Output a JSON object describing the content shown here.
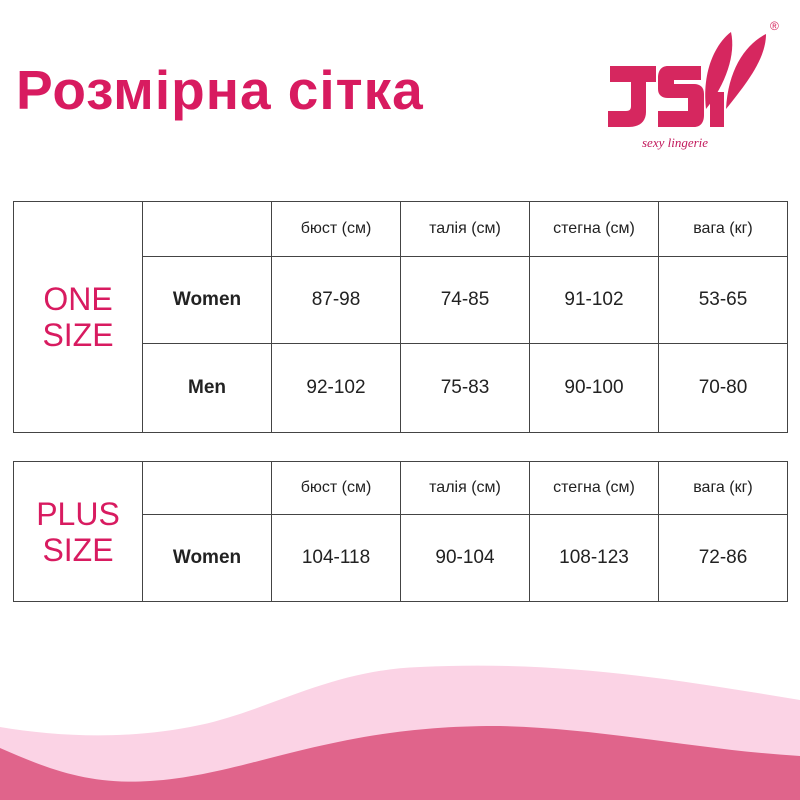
{
  "title": "Розмірна сітка",
  "logo": {
    "text": "JSY",
    "tagline": "sexy lingerie",
    "registered": "®"
  },
  "colors": {
    "accent": "#d81b60",
    "wave_light": "#fbd3e5",
    "wave_dark": "#e0648b"
  },
  "columns": [
    "бюст (см)",
    "талія (см)",
    "стегна (см)",
    "вага (кг)"
  ],
  "one_size": {
    "label_line1": "ONE",
    "label_line2": "SIZE",
    "rows": [
      {
        "label": "Women",
        "values": [
          "87-98",
          "74-85",
          "91-102",
          "53-65"
        ]
      },
      {
        "label": "Men",
        "values": [
          "92-102",
          "75-83",
          "90-100",
          "70-80"
        ]
      }
    ]
  },
  "plus_size": {
    "label_line1": "PLUS",
    "label_line2": "SIZE",
    "rows": [
      {
        "label": "Women",
        "values": [
          "104-118",
          "90-104",
          "108-123",
          "72-86"
        ]
      }
    ]
  }
}
